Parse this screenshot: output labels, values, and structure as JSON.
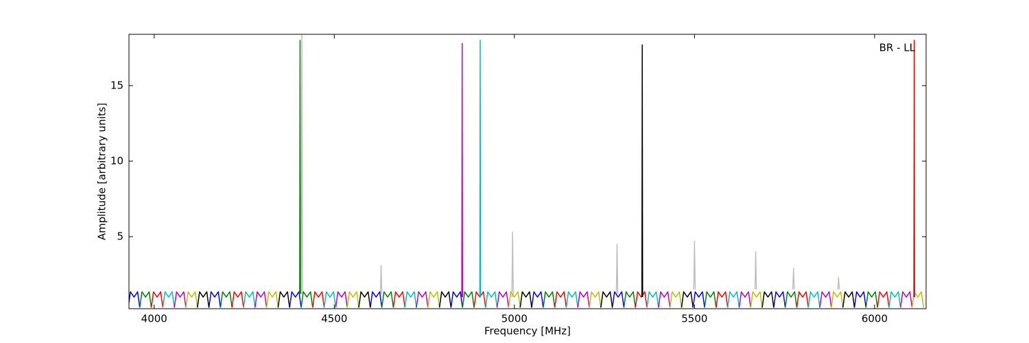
{
  "chart_data": {
    "type": "line",
    "xlabel": "Frequency [MHz]",
    "ylabel": "Amplitude [arbitrary units]",
    "annotation": "BR - LL",
    "xlim": [
      3930,
      6143
    ],
    "ylim": [
      0.23,
      18.4
    ],
    "xticks": [
      4000,
      4500,
      5000,
      5500,
      6000
    ],
    "yticks": [
      5,
      10,
      15
    ],
    "series": [
      {
        "color": "#bfbfbf",
        "x": [
          4408,
          4410,
          4412,
          4412,
          4628,
          4630,
          4632,
          4632,
          4993,
          4995,
          4997,
          4997,
          5283,
          5285,
          5287,
          5287,
          5498,
          5500,
          5502,
          5502,
          5668,
          5670,
          5672,
          5672,
          5773,
          5775,
          5777,
          5777,
          5898,
          5900,
          5902
        ],
        "values": [
          1.2,
          18.4,
          1.2,
          null,
          1.2,
          3.1,
          1.2,
          null,
          1.0,
          5.3,
          1.0,
          null,
          1.2,
          4.5,
          1.2,
          null,
          1.5,
          4.7,
          1.5,
          null,
          1.5,
          4.0,
          1.5,
          null,
          1.5,
          2.9,
          1.5,
          null,
          1.5,
          2.3,
          1.5
        ]
      },
      {
        "color": "#0000ff",
        "x": [
          3928,
          3934,
          3944,
          3954,
          3960,
          3960,
          4152,
          4158,
          4168,
          4178,
          4184,
          4184,
          4376,
          4382,
          4392,
          4402,
          4408,
          4408,
          4600,
          4606,
          4616,
          4626,
          4632,
          4632,
          4824,
          4830,
          4840,
          4850,
          4856,
          4856,
          5048,
          5054,
          5064,
          5074,
          5080,
          5080,
          5272,
          5278,
          5288,
          5298,
          5304,
          5304,
          5496,
          5502,
          5512,
          5522,
          5528,
          5528,
          5720,
          5726,
          5736,
          5746,
          5752,
          5752,
          5944,
          5950,
          5960,
          5970,
          5976
        ],
        "values": [
          0.3,
          1.35,
          1.0,
          1.35,
          0.3,
          null,
          0.3,
          1.35,
          1.0,
          1.35,
          0.3,
          null,
          0.3,
          1.35,
          1.0,
          1.35,
          0.3,
          null,
          0.3,
          1.35,
          1.0,
          1.35,
          0.3,
          null,
          0.3,
          1.35,
          1.0,
          1.35,
          0.3,
          null,
          0.3,
          1.35,
          1.0,
          1.35,
          0.3,
          null,
          0.3,
          1.35,
          1.0,
          1.35,
          0.3,
          null,
          0.3,
          1.35,
          1.0,
          1.35,
          0.3,
          null,
          0.3,
          1.35,
          1.0,
          1.35,
          0.3,
          null,
          0.3,
          1.35,
          1.0,
          1.35,
          0.3
        ]
      },
      {
        "color": "#008000",
        "x": [
          3960,
          3966,
          3976,
          3986,
          3992,
          3992,
          4184,
          4190,
          4200,
          4210,
          4216,
          4216,
          4408,
          4414,
          4424,
          4434,
          4440,
          4440,
          4632,
          4638,
          4648,
          4658,
          4664,
          4664,
          4856,
          4862,
          4872,
          4882,
          4888,
          4888,
          5080,
          5086,
          5096,
          5106,
          5112,
          5112,
          5304,
          5310,
          5320,
          5330,
          5336,
          5336,
          5528,
          5534,
          5544,
          5554,
          5560,
          5560,
          5752,
          5758,
          5768,
          5778,
          5784,
          5784,
          5976,
          5982,
          5992,
          6002,
          6008
        ],
        "values": [
          0.3,
          1.35,
          1.0,
          1.35,
          0.3,
          null,
          0.3,
          1.35,
          1.0,
          1.35,
          0.3,
          null,
          0.3,
          1.35,
          1.0,
          1.35,
          0.3,
          null,
          0.3,
          1.35,
          1.0,
          1.35,
          0.3,
          null,
          0.3,
          1.35,
          1.0,
          1.35,
          0.3,
          null,
          0.3,
          1.35,
          1.0,
          1.35,
          0.3,
          null,
          0.3,
          1.35,
          1.0,
          1.35,
          0.3,
          null,
          0.3,
          1.35,
          1.0,
          1.35,
          0.3,
          null,
          0.3,
          1.35,
          1.0,
          1.35,
          0.3,
          null,
          0.3,
          1.35,
          1.0,
          1.35,
          0.3
        ]
      },
      {
        "color": "#ff0000",
        "x": [
          3992,
          3998,
          4008,
          4018,
          4024,
          4024,
          4216,
          4222,
          4232,
          4242,
          4248,
          4248,
          4440,
          4446,
          4456,
          4466,
          4472,
          4472,
          4664,
          4670,
          4680,
          4690,
          4696,
          4696,
          4888,
          4894,
          4904,
          4914,
          4920,
          4920,
          5112,
          5118,
          5128,
          5138,
          5144,
          5144,
          5336,
          5342,
          5352,
          5362,
          5368,
          5368,
          5560,
          5566,
          5576,
          5586,
          5592,
          5592,
          5784,
          5790,
          5800,
          5810,
          5816,
          5816,
          6008,
          6014,
          6024,
          6034,
          6040
        ],
        "values": [
          0.3,
          1.35,
          1.0,
          1.35,
          0.3,
          null,
          0.3,
          1.35,
          1.0,
          1.35,
          0.3,
          null,
          0.3,
          1.35,
          1.0,
          1.35,
          0.3,
          null,
          0.3,
          1.35,
          1.0,
          1.35,
          0.3,
          null,
          0.3,
          1.35,
          1.0,
          1.35,
          0.3,
          null,
          0.3,
          1.35,
          1.0,
          1.35,
          0.3,
          null,
          0.3,
          1.35,
          1.0,
          1.35,
          0.3,
          null,
          0.3,
          1.35,
          1.0,
          1.35,
          0.3,
          null,
          0.3,
          1.35,
          1.0,
          1.35,
          0.3,
          null,
          0.3,
          1.35,
          1.0,
          1.35,
          0.3
        ]
      },
      {
        "color": "#00bfbf",
        "x": [
          4024,
          4030,
          4040,
          4050,
          4056,
          4056,
          4248,
          4254,
          4264,
          4274,
          4280,
          4280,
          4472,
          4478,
          4488,
          4498,
          4504,
          4504,
          4696,
          4702,
          4712,
          4722,
          4728,
          4728,
          4920,
          4926,
          4936,
          4946,
          4952,
          4952,
          5144,
          5150,
          5160,
          5170,
          5176,
          5176,
          5368,
          5374,
          5384,
          5394,
          5400,
          5400,
          5592,
          5598,
          5608,
          5618,
          5624,
          5624,
          5816,
          5822,
          5832,
          5842,
          5848,
          5848,
          6040,
          6046,
          6056,
          6066,
          6072
        ],
        "values": [
          0.3,
          1.35,
          1.0,
          1.35,
          0.3,
          null,
          0.3,
          1.35,
          1.0,
          1.35,
          0.3,
          null,
          0.3,
          1.35,
          1.0,
          1.35,
          0.3,
          null,
          0.3,
          1.35,
          1.0,
          1.35,
          0.3,
          null,
          0.3,
          1.35,
          1.0,
          1.35,
          0.3,
          null,
          0.3,
          1.35,
          1.0,
          1.35,
          0.3,
          null,
          0.3,
          1.35,
          1.0,
          1.35,
          0.3,
          null,
          0.3,
          1.35,
          1.0,
          1.35,
          0.3,
          null,
          0.3,
          1.35,
          1.0,
          1.35,
          0.3,
          null,
          0.3,
          1.35,
          1.0,
          1.35,
          0.3
        ]
      },
      {
        "color": "#bf00bf",
        "x": [
          4056,
          4062,
          4072,
          4082,
          4088,
          4088,
          4280,
          4286,
          4296,
          4306,
          4312,
          4312,
          4504,
          4510,
          4520,
          4530,
          4536,
          4536,
          4728,
          4734,
          4744,
          4754,
          4760,
          4760,
          4952,
          4958,
          4968,
          4978,
          4984,
          4984,
          5176,
          5182,
          5192,
          5202,
          5208,
          5208,
          5400,
          5406,
          5416,
          5426,
          5432,
          5432,
          5624,
          5630,
          5640,
          5650,
          5656,
          5656,
          5848,
          5854,
          5864,
          5874,
          5880,
          5880,
          6072,
          6078,
          6088,
          6098,
          6104
        ],
        "values": [
          0.3,
          1.35,
          1.0,
          1.35,
          0.3,
          null,
          0.3,
          1.35,
          1.0,
          1.35,
          0.3,
          null,
          0.3,
          1.35,
          1.0,
          1.35,
          0.3,
          null,
          0.3,
          1.35,
          1.0,
          1.35,
          0.3,
          null,
          0.3,
          1.35,
          1.0,
          1.35,
          0.3,
          null,
          0.3,
          1.35,
          1.0,
          1.35,
          0.3,
          null,
          0.3,
          1.35,
          1.0,
          1.35,
          0.3,
          null,
          0.3,
          1.35,
          1.0,
          1.35,
          0.3,
          null,
          0.3,
          1.35,
          1.0,
          1.35,
          0.3,
          null,
          0.3,
          1.35,
          1.0,
          1.35,
          0.3
        ]
      },
      {
        "color": "#bfbf00",
        "x": [
          4088,
          4094,
          4104,
          4114,
          4120,
          4120,
          4312,
          4318,
          4328,
          4338,
          4344,
          4344,
          4536,
          4542,
          4552,
          4562,
          4568,
          4568,
          4760,
          4766,
          4776,
          4786,
          4792,
          4792,
          4984,
          4990,
          5000,
          5010,
          5016,
          5016,
          5208,
          5214,
          5224,
          5234,
          5240,
          5240,
          5432,
          5438,
          5448,
          5458,
          5464,
          5464,
          5656,
          5662,
          5672,
          5682,
          5688,
          5688,
          5880,
          5886,
          5896,
          5906,
          5912,
          5912,
          6104,
          6110,
          6120,
          6130,
          6136
        ],
        "values": [
          0.3,
          1.35,
          1.0,
          1.35,
          0.3,
          null,
          0.3,
          1.35,
          1.0,
          1.35,
          0.3,
          null,
          0.3,
          1.35,
          1.0,
          1.35,
          0.3,
          null,
          0.3,
          1.35,
          1.0,
          1.35,
          0.3,
          null,
          0.3,
          1.35,
          1.0,
          1.35,
          0.3,
          null,
          0.3,
          1.35,
          1.0,
          1.35,
          0.3,
          null,
          0.3,
          1.35,
          1.0,
          1.35,
          0.3,
          null,
          0.3,
          1.35,
          1.0,
          1.35,
          0.3,
          null,
          0.3,
          1.35,
          1.0,
          1.35,
          0.3,
          null,
          0.3,
          1.35,
          1.0,
          1.35,
          0.3
        ]
      },
      {
        "color": "#000000",
        "x": [
          4120,
          4126,
          4136,
          4146,
          4152,
          4152,
          4344,
          4350,
          4360,
          4370,
          4376,
          4376,
          4568,
          4574,
          4584,
          4594,
          4600,
          4600,
          4792,
          4798,
          4808,
          4818,
          4824,
          4824,
          5016,
          5022,
          5032,
          5042,
          5048,
          5048,
          5240,
          5246,
          5256,
          5266,
          5272,
          5272,
          5464,
          5470,
          5480,
          5490,
          5496,
          5496,
          5688,
          5694,
          5704,
          5714,
          5720,
          5720,
          5912,
          5918,
          5928,
          5938,
          5944
        ],
        "values": [
          0.3,
          1.35,
          1.0,
          1.35,
          0.3,
          null,
          0.3,
          1.35,
          1.0,
          1.35,
          0.3,
          null,
          0.3,
          1.35,
          1.0,
          1.35,
          0.3,
          null,
          0.3,
          1.35,
          1.0,
          1.35,
          0.3,
          null,
          0.3,
          1.35,
          1.0,
          1.35,
          0.3,
          null,
          0.3,
          1.35,
          1.0,
          1.35,
          0.3,
          null,
          0.3,
          1.35,
          1.0,
          1.35,
          0.3,
          null,
          0.3,
          1.35,
          1.0,
          1.35,
          0.3,
          null,
          0.3,
          1.35,
          1.0,
          1.35,
          0.3
        ]
      },
      {
        "color": "#008000",
        "x": [
          4404,
          4405,
          4406
        ],
        "values": [
          1.2,
          18.0,
          1.2
        ]
      },
      {
        "color": "#bf00bf",
        "x": [
          4854,
          4855,
          4856
        ],
        "values": [
          1.0,
          17.8,
          1.0
        ]
      },
      {
        "color": "#00bfbf",
        "x": [
          4904,
          4905,
          4906
        ],
        "values": [
          1.0,
          18.0,
          1.0
        ]
      },
      {
        "color": "#000000",
        "x": [
          5354,
          5355,
          5356
        ],
        "values": [
          1.0,
          17.7,
          1.0
        ]
      },
      {
        "color": "#ff0000",
        "x": [
          6109,
          6110,
          6111
        ],
        "values": [
          1.0,
          18.0,
          1.0
        ]
      }
    ]
  }
}
